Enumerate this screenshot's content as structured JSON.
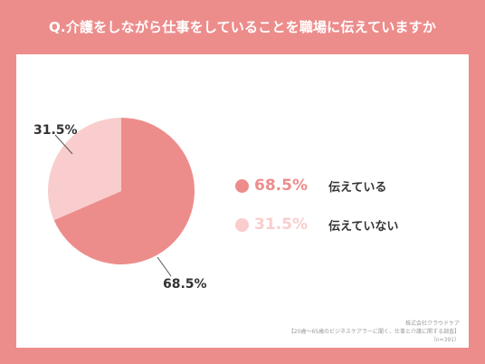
{
  "title": "Q.介護をしながら仕事をしていることを職場に伝えていますか",
  "colors": {
    "background": "#ec8d8c",
    "slice_1": "#ec8d8c",
    "slice_2": "#f9cdcd"
  },
  "legend": [
    {
      "value": "68.5%",
      "label": "伝えている",
      "color": "#ec8d8c"
    },
    {
      "value": "31.5%",
      "label": "伝えていない",
      "color": "#f9cdcd"
    }
  ],
  "pie_labels": {
    "slice_1": "68.5%",
    "slice_2": "31.5%"
  },
  "source": {
    "company": "株式会社クラウドケア",
    "survey": "【20歳～65歳のビジネスケアラーに聞く、仕事と介護に関する調査】",
    "n": "（n=391）"
  },
  "chart_data": {
    "type": "pie",
    "title": "Q.介護をしながら仕事をしていることを職場に伝えていますか",
    "categories": [
      "伝えている",
      "伝えていない"
    ],
    "values": [
      68.5,
      31.5
    ],
    "unit": "%",
    "legend_position": "right"
  }
}
